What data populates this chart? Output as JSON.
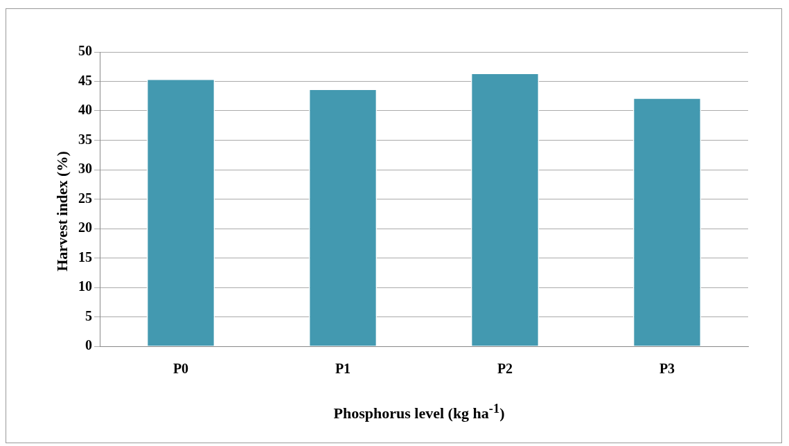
{
  "chart_data": {
    "type": "bar",
    "xlabel": "Phosphorus level (kg ha$^{-1}$)",
    "ylabel": "Harvest index (%)",
    "categories": [
      "P0",
      "P1",
      "P2",
      "P3"
    ],
    "values": [
      45.4,
      43.7,
      46.4,
      42.2
    ],
    "color": "#4399b0",
    "ylim": [
      0,
      50
    ],
    "yticks": [
      0,
      5,
      10,
      15,
      20,
      25,
      30,
      35,
      40,
      45,
      50
    ],
    "grid": "y",
    "legend": false
  }
}
